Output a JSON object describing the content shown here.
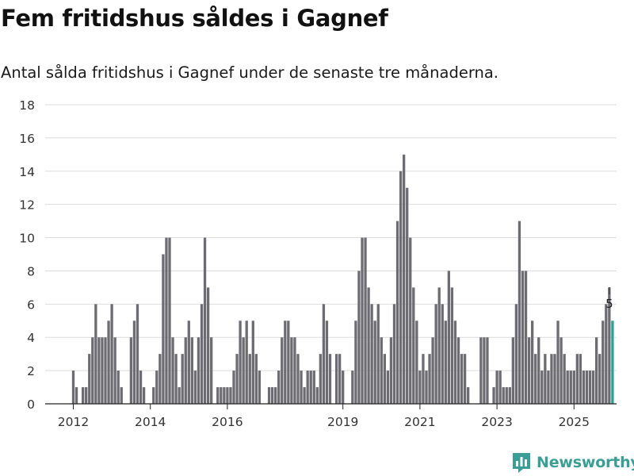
{
  "header": {
    "title": "Fem fritidshus såldes i Gagnef",
    "subtitle": "Antal sålda fritidshus i Gagnef under de senaste tre månaderna."
  },
  "brand": {
    "name": "Newsworthy",
    "icon": "newsworthy-logo-icon",
    "color": "#3a9e96"
  },
  "chart_data": {
    "type": "bar",
    "title": "Fem fritidshus såldes i Gagnef",
    "subtitle": "Antal sålda fritidshus i Gagnef under de senaste tre månaderna.",
    "xlabel": "",
    "ylabel": "",
    "ylim": [
      0,
      18
    ],
    "yticks": [
      0,
      2,
      4,
      6,
      8,
      10,
      12,
      14,
      16,
      18
    ],
    "grid": true,
    "start": "2012-01",
    "frequency": "monthly",
    "xtick_labels": [
      {
        "label": "2012",
        "index": 0
      },
      {
        "label": "2014",
        "index": 24
      },
      {
        "label": "2016",
        "index": 48
      },
      {
        "label": "2019",
        "index": 84
      },
      {
        "label": "2021",
        "index": 108
      },
      {
        "label": "2023",
        "index": 132
      },
      {
        "label": "2025",
        "index": 156
      }
    ],
    "bar_color": "#6d6c72",
    "highlight_color": "#28a294",
    "highlight_label": "5",
    "series": [
      {
        "name": "Antal sålda fritidshus",
        "values": [
          2,
          1,
          0,
          1,
          1,
          3,
          4,
          6,
          4,
          4,
          4,
          5,
          6,
          4,
          2,
          1,
          0,
          0,
          4,
          5,
          6,
          2,
          1,
          0,
          0,
          1,
          2,
          3,
          9,
          10,
          10,
          4,
          3,
          1,
          3,
          4,
          5,
          4,
          2,
          4,
          6,
          10,
          7,
          4,
          0,
          1,
          1,
          1,
          1,
          1,
          2,
          3,
          5,
          4,
          5,
          3,
          5,
          3,
          2,
          0,
          0,
          1,
          1,
          1,
          2,
          4,
          5,
          5,
          4,
          4,
          3,
          2,
          1,
          2,
          2,
          2,
          1,
          3,
          6,
          5,
          3,
          0,
          3,
          3,
          2,
          0,
          0,
          2,
          5,
          8,
          10,
          10,
          7,
          6,
          5,
          6,
          4,
          3,
          2,
          4,
          6,
          11,
          14,
          15,
          13,
          10,
          7,
          5,
          2,
          3,
          2,
          3,
          4,
          6,
          7,
          6,
          5,
          8,
          7,
          5,
          4,
          3,
          3,
          1,
          0,
          0,
          0,
          4,
          4,
          4,
          0,
          1,
          2,
          2,
          1,
          1,
          1,
          4,
          6,
          11,
          8,
          8,
          4,
          5,
          3,
          4,
          2,
          3,
          2,
          3,
          3,
          5,
          4,
          3,
          2,
          2,
          2,
          3,
          3,
          2,
          2,
          2,
          2,
          4,
          3,
          5,
          6,
          7,
          5
        ]
      }
    ]
  }
}
